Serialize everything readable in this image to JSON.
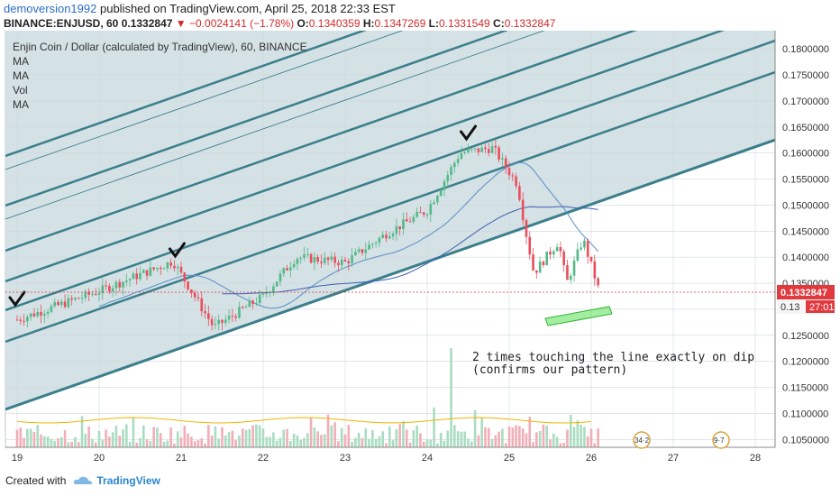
{
  "header": {
    "username": "demoversion1992",
    "published_text": "published on TradingView.com, April 25, 2018 22:33 EST"
  },
  "quote": {
    "symbol": "BINANCE:ENJUSD, 60",
    "last": "0.1332847",
    "change_arrow": "▼",
    "change": "−0.0024141 (−1.78%)",
    "o_label": "O:",
    "o": "0.1340359",
    "h_label": "H:",
    "h": "0.1347269",
    "l_label": "L:",
    "l": "0.1331549",
    "c_label": "C:",
    "c": "0.1332847"
  },
  "footer": {
    "created_with": "Created with",
    "brand": "TradingView"
  },
  "chart_data": {
    "type": "candlestick",
    "title": "Enjin Coin / Dollar (calculated by TradingView), 60, BINANCE",
    "legend": [
      "MA",
      "MA",
      "Vol",
      "MA"
    ],
    "y_axis": {
      "ylim": [
        0.1035,
        0.1835
      ],
      "ticks": [
        "0.1800000",
        "0.1750000",
        "0.1700000",
        "0.1650000",
        "0.1600000",
        "0.1550000",
        "0.1500000",
        "0.1450000",
        "0.1400000",
        "0.1350000",
        "0.1300000",
        "0.1250000",
        "0.1200000",
        "0.1150000",
        "0.1100000",
        "0.1050000"
      ],
      "last_price_label": "0.1332847",
      "countdown_label": "27:01",
      "visible_tick_under_countdown": "0.13"
    },
    "x_axis": {
      "ticks": [
        "19",
        "20",
        "21",
        "22",
        "23",
        "24",
        "25",
        "26",
        "27",
        "28"
      ]
    },
    "annotation": {
      "text_line1": "2 times touching the line exactly on dip",
      "text_line2": "(confirms our pattern)",
      "checkmark_count": 3
    },
    "event_badges": [
      {
        "label": "34·2"
      },
      {
        "label": "9·7"
      }
    ],
    "key_points": [
      {
        "x": "19",
        "y": 0.128
      },
      {
        "x": "20",
        "y": 0.1335
      },
      {
        "x": "20.9",
        "y": 0.1392
      },
      {
        "x": "21.4",
        "y": 0.1265
      },
      {
        "x": "22",
        "y": 0.1325
      },
      {
        "x": "22.4",
        "y": 0.14
      },
      {
        "x": "23",
        "y": 0.139
      },
      {
        "x": "23.5",
        "y": 0.1445
      },
      {
        "x": "24",
        "y": 0.149
      },
      {
        "x": "24.4",
        "y": 0.16
      },
      {
        "x": "24.8",
        "y": 0.161
      },
      {
        "x": "25.1",
        "y": 0.154
      },
      {
        "x": "25.2",
        "y": 0.145
      },
      {
        "x": "25.3",
        "y": 0.137
      },
      {
        "x": "25.6",
        "y": 0.143
      },
      {
        "x": "25.7",
        "y": 0.135
      },
      {
        "x": "25.9",
        "y": 0.1435
      },
      {
        "x": "26.1",
        "y": 0.1333
      }
    ],
    "volume_peak_x": "24.3",
    "colors": {
      "up": "#53b987",
      "down": "#eb4d5c",
      "channel": "#3b7f8c",
      "ma_blue": "#3f5fb3",
      "ma_light": "#5a8fc9",
      "vol_ma": "#f0b400",
      "shade": "#d4e1e5",
      "highlight": "#58e058"
    }
  }
}
